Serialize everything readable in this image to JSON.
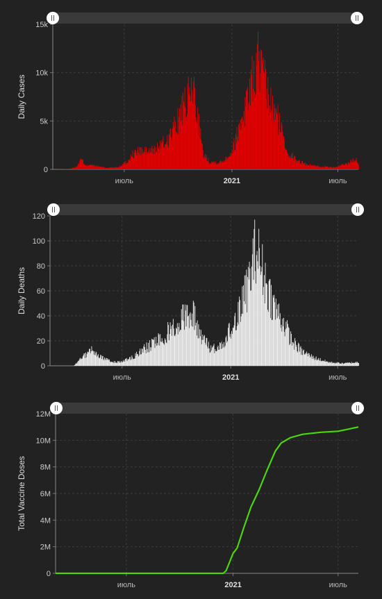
{
  "chart_data": [
    {
      "type": "bar",
      "ylabel": "Daily Cases",
      "xlabel": "",
      "ylim": [
        0,
        15000
      ],
      "y_ticks": [
        "0",
        "5k",
        "10k",
        "15k"
      ],
      "x_ticks": [
        "июль",
        "2021",
        "июль"
      ],
      "grid": true,
      "color": "#e60000",
      "x_start": "2020-03-01",
      "x_end": "2021-08-05",
      "keypoints": [
        [
          "2020-03-01",
          0
        ],
        [
          "2020-03-25",
          30
        ],
        [
          "2020-04-10",
          250
        ],
        [
          "2020-04-18",
          1100
        ],
        [
          "2020-04-25",
          500
        ],
        [
          "2020-05-10",
          400
        ],
        [
          "2020-06-01",
          160
        ],
        [
          "2020-06-20",
          250
        ],
        [
          "2020-07-05",
          800
        ],
        [
          "2020-07-15",
          1600
        ],
        [
          "2020-07-25",
          2000
        ],
        [
          "2020-08-10",
          1900
        ],
        [
          "2020-08-25",
          2200
        ],
        [
          "2020-09-10",
          3000
        ],
        [
          "2020-09-25",
          4500
        ],
        [
          "2020-10-10",
          6500
        ],
        [
          "2020-10-20",
          8000
        ],
        [
          "2020-10-26",
          9000
        ],
        [
          "2020-11-05",
          5000
        ],
        [
          "2020-11-12",
          1700
        ],
        [
          "2020-11-25",
          800
        ],
        [
          "2020-12-15",
          800
        ],
        [
          "2021-01-01",
          2000
        ],
        [
          "2021-01-15",
          5000
        ],
        [
          "2021-02-01",
          9000
        ],
        [
          "2021-02-10",
          10500
        ],
        [
          "2021-02-14",
          12000
        ],
        [
          "2021-02-24",
          9500
        ],
        [
          "2021-03-10",
          6500
        ],
        [
          "2021-03-20",
          5500
        ],
        [
          "2021-04-05",
          2000
        ],
        [
          "2021-04-20",
          1000
        ],
        [
          "2021-05-10",
          500
        ],
        [
          "2021-06-01",
          300
        ],
        [
          "2021-06-25",
          200
        ],
        [
          "2021-07-15",
          600
        ],
        [
          "2021-08-01",
          1200
        ],
        [
          "2021-08-05",
          700
        ]
      ]
    },
    {
      "type": "bar",
      "ylabel": "Daily Deaths",
      "xlabel": "",
      "ylim": [
        0,
        120
      ],
      "y_ticks": [
        "0",
        "20",
        "40",
        "60",
        "80",
        "100",
        "120"
      ],
      "x_ticks": [
        "июль",
        "2021",
        "июль"
      ],
      "grid": true,
      "color": "#eeeeee",
      "x_start": "2020-03-01",
      "x_end": "2021-08-05",
      "keypoints": [
        [
          "2020-03-01",
          0
        ],
        [
          "2020-04-10",
          0
        ],
        [
          "2020-04-20",
          5
        ],
        [
          "2020-05-01",
          10
        ],
        [
          "2020-05-10",
          13
        ],
        [
          "2020-05-20",
          8
        ],
        [
          "2020-06-10",
          4
        ],
        [
          "2020-06-25",
          3
        ],
        [
          "2020-07-15",
          6
        ],
        [
          "2020-08-01",
          12
        ],
        [
          "2020-08-20",
          18
        ],
        [
          "2020-09-10",
          25
        ],
        [
          "2020-09-25",
          33
        ],
        [
          "2020-10-10",
          40
        ],
        [
          "2020-10-20",
          47
        ],
        [
          "2020-11-01",
          40
        ],
        [
          "2020-11-12",
          25
        ],
        [
          "2020-11-25",
          15
        ],
        [
          "2020-12-10",
          15
        ],
        [
          "2020-12-25",
          25
        ],
        [
          "2021-01-10",
          40
        ],
        [
          "2021-01-25",
          60
        ],
        [
          "2021-02-05",
          80
        ],
        [
          "2021-02-12",
          101
        ],
        [
          "2021-02-20",
          85
        ],
        [
          "2021-03-01",
          70
        ],
        [
          "2021-03-15",
          50
        ],
        [
          "2021-04-01",
          35
        ],
        [
          "2021-04-15",
          20
        ],
        [
          "2021-05-01",
          12
        ],
        [
          "2021-05-20",
          7
        ],
        [
          "2021-06-15",
          3
        ],
        [
          "2021-07-10",
          2
        ],
        [
          "2021-08-05",
          3
        ]
      ]
    },
    {
      "type": "line",
      "ylabel": "Total Vaccine Doses",
      "xlabel": "",
      "ylim": [
        0,
        12000000
      ],
      "y_ticks": [
        "0",
        "2M",
        "4M",
        "6M",
        "8M",
        "10M",
        "12M"
      ],
      "x_ticks": [
        "июль",
        "2021",
        "июль"
      ],
      "grid": true,
      "color": "#4cd60c",
      "x_start": "2020-03-01",
      "x_end": "2021-08-05",
      "points": [
        [
          "2020-03-01",
          0
        ],
        [
          "2020-12-15",
          0
        ],
        [
          "2020-12-20",
          200000
        ],
        [
          "2021-01-01",
          1500000
        ],
        [
          "2021-01-08",
          1900000
        ],
        [
          "2021-01-20",
          3500000
        ],
        [
          "2021-02-01",
          5000000
        ],
        [
          "2021-02-15",
          6300000
        ],
        [
          "2021-03-01",
          7800000
        ],
        [
          "2021-03-15",
          9200000
        ],
        [
          "2021-03-25",
          9800000
        ],
        [
          "2021-04-10",
          10200000
        ],
        [
          "2021-05-01",
          10450000
        ],
        [
          "2021-06-01",
          10600000
        ],
        [
          "2021-07-01",
          10680000
        ],
        [
          "2021-07-20",
          10850000
        ],
        [
          "2021-08-05",
          11000000
        ]
      ]
    }
  ]
}
